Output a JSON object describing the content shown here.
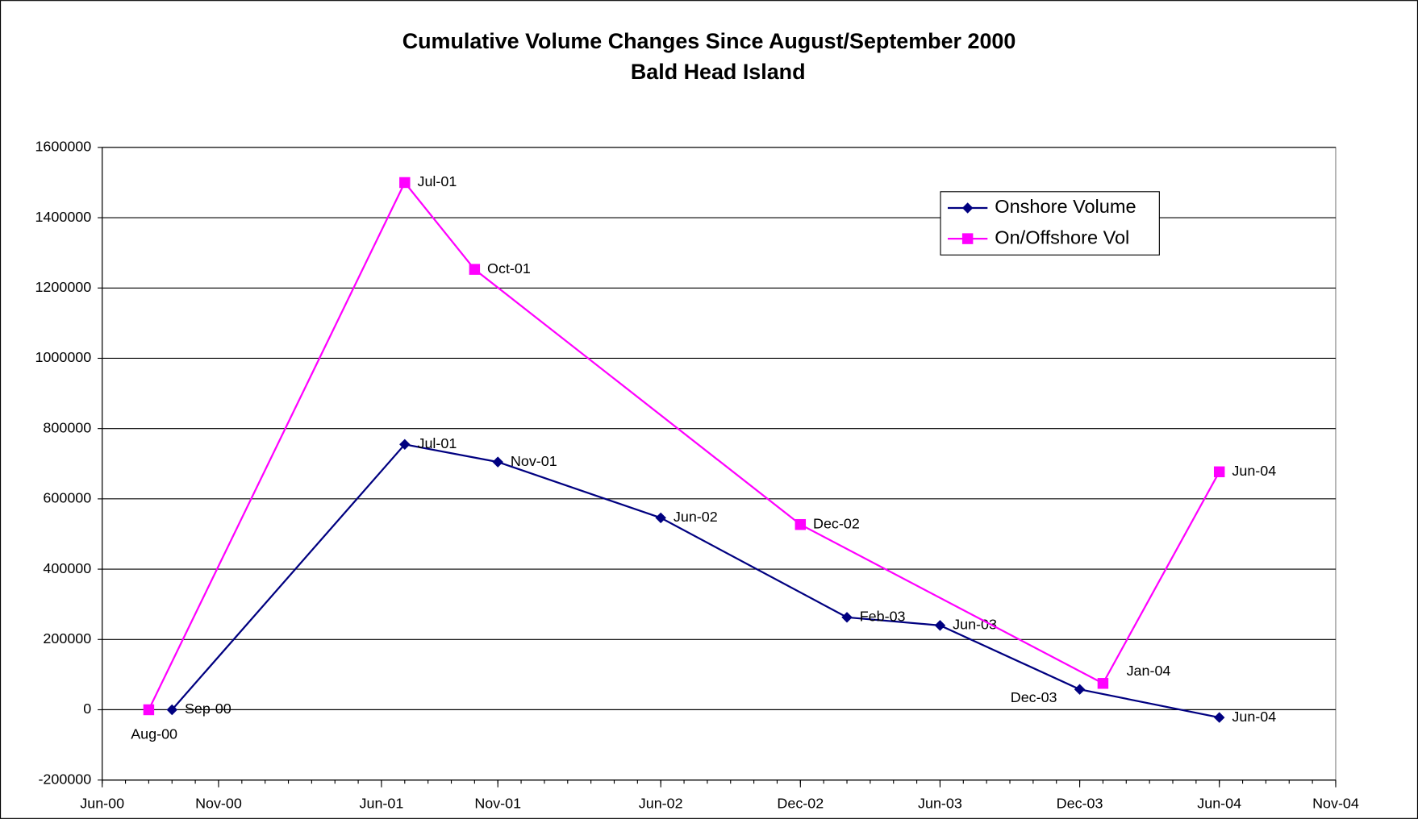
{
  "chart_data": {
    "type": "line",
    "title": "Cumulative Volume Changes Since August/September 2000",
    "subtitle": "Bald Head Island",
    "xlim": [
      "2000-06",
      "2004-11"
    ],
    "xticks": [
      {
        "value": "2000-06",
        "label": "Jun-00"
      },
      {
        "value": "2000-11",
        "label": "Nov-00"
      },
      {
        "value": "2001-06",
        "label": "Jun-01"
      },
      {
        "value": "2001-11",
        "label": "Nov-01"
      },
      {
        "value": "2002-06",
        "label": "Jun-02"
      },
      {
        "value": "2002-12",
        "label": "Dec-02"
      },
      {
        "value": "2003-06",
        "label": "Jun-03"
      },
      {
        "value": "2003-12",
        "label": "Dec-03"
      },
      {
        "value": "2004-06",
        "label": "Jun-04"
      },
      {
        "value": "2004-11",
        "label": "Nov-04"
      }
    ],
    "ylim": [
      -200000,
      1600000
    ],
    "yticks": [
      -200000,
      0,
      200000,
      400000,
      600000,
      800000,
      1000000,
      1200000,
      1400000,
      1600000
    ],
    "grid": true,
    "legend": "upper right",
    "series": [
      {
        "name": "Onshore Volume",
        "color": "#000080",
        "marker": "diamond",
        "x": [
          "2000-09",
          "2001-07",
          "2001-11",
          "2002-06",
          "2003-02",
          "2003-06",
          "2003-12",
          "2004-06"
        ],
        "point_labels": [
          "Sep-00",
          "Jul-01",
          "Nov-01",
          "Jun-02",
          "Feb-03",
          "Jun-03",
          "Dec-03",
          "Jun-04"
        ],
        "values": [
          0,
          755000,
          705000,
          546000,
          263000,
          240000,
          58000,
          -22000
        ]
      },
      {
        "name": "On/Offshore Vol",
        "color": "#ff00ff",
        "marker": "square",
        "x": [
          "2000-08",
          "2001-07",
          "2001-10",
          "2002-12",
          "2004-01",
          "2004-06"
        ],
        "point_labels": [
          "Aug-00",
          "Jul-01",
          "Oct-01",
          "Dec-02",
          "Jan-04",
          "Jun-04"
        ],
        "values": [
          0,
          1500000,
          1253000,
          527000,
          75000,
          677000
        ]
      }
    ]
  }
}
